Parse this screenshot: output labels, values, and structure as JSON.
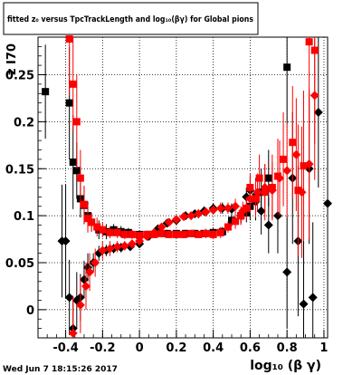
{
  "chart_data": {
    "type": "scatter",
    "title": "fitted  z₀ versus TpcTrackLength and log₁₀(βγ) for Global pions",
    "xlabel": "log₁₀ (β γ)",
    "ylabel": "z I70",
    "xlim": [
      -0.55,
      1.02
    ],
    "ylim": [
      -0.03,
      0.29
    ],
    "xticks": [
      -0.4,
      -0.2,
      0,
      0.2,
      0.4,
      0.6,
      0.8,
      1
    ],
    "xtick_labels": [
      "-0.4",
      "-0.2",
      "0",
      "0.2",
      "0.4",
      "0.6",
      "0.8",
      "1"
    ],
    "yticks": [
      0,
      0.05,
      0.1,
      0.15,
      0.2,
      0.25
    ],
    "ytick_labels": [
      "0",
      "0.05",
      "0.1",
      "0.15",
      "0.2",
      "0.25"
    ],
    "grid": true,
    "footer_text": "Wed Jun  7 18:15:26 2017",
    "series": [
      {
        "color": "#000000",
        "marker": "square",
        "points": [
          {
            "x": -0.51,
            "y": 0.232,
            "err": 0.05
          },
          {
            "x": -0.38,
            "y": 0.22,
            "err": 0.06
          },
          {
            "x": -0.36,
            "y": 0.157,
            "err": 0.05
          },
          {
            "x": -0.34,
            "y": 0.148,
            "err": 0.03
          },
          {
            "x": -0.32,
            "y": 0.118,
            "err": 0.02
          },
          {
            "x": -0.3,
            "y": 0.111,
            "err": 0.02
          },
          {
            "x": -0.28,
            "y": 0.1,
            "err": 0.015
          },
          {
            "x": -0.26,
            "y": 0.093,
            "err": 0.01
          },
          {
            "x": -0.22,
            "y": 0.085,
            "err": 0.01
          },
          {
            "x": -0.18,
            "y": 0.083,
            "err": 0.008
          },
          {
            "x": -0.14,
            "y": 0.085,
            "err": 0.006
          },
          {
            "x": -0.1,
            "y": 0.083,
            "err": 0.006
          },
          {
            "x": -0.06,
            "y": 0.082,
            "err": 0.005
          },
          {
            "x": 0.0,
            "y": 0.08,
            "err": 0.004
          },
          {
            "x": 0.05,
            "y": 0.08,
            "err": 0.004
          },
          {
            "x": 0.1,
            "y": 0.082,
            "err": 0.004
          },
          {
            "x": 0.15,
            "y": 0.081,
            "err": 0.004
          },
          {
            "x": 0.2,
            "y": 0.081,
            "err": 0.004
          },
          {
            "x": 0.25,
            "y": 0.081,
            "err": 0.004
          },
          {
            "x": 0.3,
            "y": 0.081,
            "err": 0.004
          },
          {
            "x": 0.35,
            "y": 0.081,
            "err": 0.004
          },
          {
            "x": 0.4,
            "y": 0.082,
            "err": 0.005
          },
          {
            "x": 0.45,
            "y": 0.083,
            "err": 0.005
          },
          {
            "x": 0.5,
            "y": 0.095,
            "err": 0.006
          },
          {
            "x": 0.55,
            "y": 0.1,
            "err": 0.008
          },
          {
            "x": 0.58,
            "y": 0.103,
            "err": 0.01
          },
          {
            "x": 0.6,
            "y": 0.11,
            "err": 0.015
          },
          {
            "x": 0.63,
            "y": 0.12,
            "err": 0.02
          },
          {
            "x": 0.66,
            "y": 0.125,
            "err": 0.025
          },
          {
            "x": 0.7,
            "y": 0.14,
            "err": 0.03
          },
          {
            "x": 0.8,
            "y": 0.258,
            "err": 0.06
          }
        ]
      },
      {
        "color": "#000000",
        "marker": "diamond",
        "points": [
          {
            "x": -0.42,
            "y": 0.073,
            "err": 0.06
          },
          {
            "x": -0.4,
            "y": 0.073,
            "err": 0.06
          },
          {
            "x": -0.38,
            "y": 0.013,
            "err": 0.04
          },
          {
            "x": -0.36,
            "y": -0.02,
            "err": 0.03
          },
          {
            "x": -0.34,
            "y": 0.01,
            "err": 0.03
          },
          {
            "x": -0.32,
            "y": 0.013,
            "err": 0.025
          },
          {
            "x": -0.3,
            "y": 0.032,
            "err": 0.02
          },
          {
            "x": -0.28,
            "y": 0.045,
            "err": 0.015
          },
          {
            "x": -0.25,
            "y": 0.05,
            "err": 0.01
          },
          {
            "x": -0.22,
            "y": 0.06,
            "err": 0.008
          },
          {
            "x": -0.18,
            "y": 0.063,
            "err": 0.006
          },
          {
            "x": -0.14,
            "y": 0.065,
            "err": 0.005
          },
          {
            "x": -0.1,
            "y": 0.066,
            "err": 0.005
          },
          {
            "x": -0.05,
            "y": 0.067,
            "err": 0.004
          },
          {
            "x": 0.0,
            "y": 0.07,
            "err": 0.004
          },
          {
            "x": 0.05,
            "y": 0.078,
            "err": 0.004
          },
          {
            "x": 0.1,
            "y": 0.086,
            "err": 0.004
          },
          {
            "x": 0.15,
            "y": 0.092,
            "err": 0.004
          },
          {
            "x": 0.2,
            "y": 0.095,
            "err": 0.004
          },
          {
            "x": 0.25,
            "y": 0.1,
            "err": 0.004
          },
          {
            "x": 0.3,
            "y": 0.102,
            "err": 0.004
          },
          {
            "x": 0.35,
            "y": 0.105,
            "err": 0.005
          },
          {
            "x": 0.4,
            "y": 0.108,
            "err": 0.005
          },
          {
            "x": 0.45,
            "y": 0.108,
            "err": 0.006
          },
          {
            "x": 0.5,
            "y": 0.107,
            "err": 0.006
          },
          {
            "x": 0.55,
            "y": 0.1,
            "err": 0.008
          },
          {
            "x": 0.58,
            "y": 0.12,
            "err": 0.01
          },
          {
            "x": 0.6,
            "y": 0.127,
            "err": 0.015
          },
          {
            "x": 0.63,
            "y": 0.115,
            "err": 0.02
          },
          {
            "x": 0.66,
            "y": 0.105,
            "err": 0.025
          },
          {
            "x": 0.7,
            "y": 0.09,
            "err": 0.03
          },
          {
            "x": 0.75,
            "y": 0.1,
            "err": 0.04
          },
          {
            "x": 0.8,
            "y": 0.04,
            "err": 0.06
          },
          {
            "x": 0.83,
            "y": 0.14,
            "err": 0.07
          },
          {
            "x": 0.86,
            "y": 0.073,
            "err": 0.08
          },
          {
            "x": 0.89,
            "y": 0.006,
            "err": 0.08
          },
          {
            "x": 0.92,
            "y": 0.15,
            "err": 0.08
          },
          {
            "x": 0.94,
            "y": 0.013,
            "err": 0.08
          },
          {
            "x": 0.97,
            "y": 0.21,
            "err": 0.08
          },
          {
            "x": 1.02,
            "y": 0.113,
            "err": 0.08
          }
        ]
      },
      {
        "color": "#ff0000",
        "marker": "square",
        "points": [
          {
            "x": -0.38,
            "y": 0.288,
            "err": 0.06
          },
          {
            "x": -0.36,
            "y": 0.24,
            "err": 0.05
          },
          {
            "x": -0.34,
            "y": 0.2,
            "err": 0.05
          },
          {
            "x": -0.32,
            "y": 0.14,
            "err": 0.03
          },
          {
            "x": -0.3,
            "y": 0.112,
            "err": 0.02
          },
          {
            "x": -0.28,
            "y": 0.097,
            "err": 0.015
          },
          {
            "x": -0.26,
            "y": 0.093,
            "err": 0.01
          },
          {
            "x": -0.23,
            "y": 0.088,
            "err": 0.01
          },
          {
            "x": -0.2,
            "y": 0.085,
            "err": 0.008
          },
          {
            "x": -0.16,
            "y": 0.082,
            "err": 0.006
          },
          {
            "x": -0.12,
            "y": 0.082,
            "err": 0.006
          },
          {
            "x": -0.08,
            "y": 0.08,
            "err": 0.005
          },
          {
            "x": -0.04,
            "y": 0.08,
            "err": 0.005
          },
          {
            "x": 0.0,
            "y": 0.079,
            "err": 0.004
          },
          {
            "x": 0.04,
            "y": 0.08,
            "err": 0.004
          },
          {
            "x": 0.08,
            "y": 0.08,
            "err": 0.004
          },
          {
            "x": 0.12,
            "y": 0.081,
            "err": 0.004
          },
          {
            "x": 0.16,
            "y": 0.08,
            "err": 0.004
          },
          {
            "x": 0.2,
            "y": 0.08,
            "err": 0.004
          },
          {
            "x": 0.24,
            "y": 0.08,
            "err": 0.004
          },
          {
            "x": 0.28,
            "y": 0.081,
            "err": 0.004
          },
          {
            "x": 0.32,
            "y": 0.08,
            "err": 0.004
          },
          {
            "x": 0.36,
            "y": 0.081,
            "err": 0.005
          },
          {
            "x": 0.4,
            "y": 0.08,
            "err": 0.005
          },
          {
            "x": 0.44,
            "y": 0.082,
            "err": 0.006
          },
          {
            "x": 0.48,
            "y": 0.088,
            "err": 0.006
          },
          {
            "x": 0.52,
            "y": 0.094,
            "err": 0.008
          },
          {
            "x": 0.55,
            "y": 0.1,
            "err": 0.01
          },
          {
            "x": 0.58,
            "y": 0.108,
            "err": 0.012
          },
          {
            "x": 0.6,
            "y": 0.13,
            "err": 0.015
          },
          {
            "x": 0.63,
            "y": 0.118,
            "err": 0.02
          },
          {
            "x": 0.65,
            "y": 0.14,
            "err": 0.025
          },
          {
            "x": 0.68,
            "y": 0.125,
            "err": 0.03
          },
          {
            "x": 0.72,
            "y": 0.13,
            "err": 0.035
          },
          {
            "x": 0.75,
            "y": 0.142,
            "err": 0.04
          },
          {
            "x": 0.78,
            "y": 0.16,
            "err": 0.05
          },
          {
            "x": 0.83,
            "y": 0.178,
            "err": 0.06
          },
          {
            "x": 0.86,
            "y": 0.127,
            "err": 0.07
          },
          {
            "x": 0.89,
            "y": 0.153,
            "err": 0.08
          },
          {
            "x": 0.92,
            "y": 0.285,
            "err": 0.1
          },
          {
            "x": 0.95,
            "y": 0.276,
            "err": 0.1
          }
        ]
      },
      {
        "color": "#ff0000",
        "marker": "diamond",
        "points": [
          {
            "x": -0.36,
            "y": -0.025,
            "err": 0.04
          },
          {
            "x": -0.32,
            "y": 0.005,
            "err": 0.03
          },
          {
            "x": -0.29,
            "y": 0.025,
            "err": 0.025
          },
          {
            "x": -0.27,
            "y": 0.04,
            "err": 0.02
          },
          {
            "x": -0.24,
            "y": 0.05,
            "err": 0.015
          },
          {
            "x": -0.2,
            "y": 0.063,
            "err": 0.01
          },
          {
            "x": -0.16,
            "y": 0.065,
            "err": 0.008
          },
          {
            "x": -0.12,
            "y": 0.067,
            "err": 0.006
          },
          {
            "x": -0.08,
            "y": 0.068,
            "err": 0.005
          },
          {
            "x": -0.04,
            "y": 0.07,
            "err": 0.004
          },
          {
            "x": 0.0,
            "y": 0.073,
            "err": 0.004
          },
          {
            "x": 0.04,
            "y": 0.078,
            "err": 0.004
          },
          {
            "x": 0.08,
            "y": 0.082,
            "err": 0.004
          },
          {
            "x": 0.12,
            "y": 0.088,
            "err": 0.004
          },
          {
            "x": 0.16,
            "y": 0.093,
            "err": 0.004
          },
          {
            "x": 0.2,
            "y": 0.096,
            "err": 0.004
          },
          {
            "x": 0.24,
            "y": 0.099,
            "err": 0.004
          },
          {
            "x": 0.28,
            "y": 0.1,
            "err": 0.004
          },
          {
            "x": 0.32,
            "y": 0.102,
            "err": 0.005
          },
          {
            "x": 0.36,
            "y": 0.104,
            "err": 0.005
          },
          {
            "x": 0.4,
            "y": 0.106,
            "err": 0.005
          },
          {
            "x": 0.44,
            "y": 0.108,
            "err": 0.006
          },
          {
            "x": 0.48,
            "y": 0.108,
            "err": 0.006
          },
          {
            "x": 0.52,
            "y": 0.11,
            "err": 0.008
          },
          {
            "x": 0.56,
            "y": 0.105,
            "err": 0.01
          },
          {
            "x": 0.6,
            "y": 0.118,
            "err": 0.015
          },
          {
            "x": 0.64,
            "y": 0.125,
            "err": 0.02
          },
          {
            "x": 0.68,
            "y": 0.13,
            "err": 0.025
          },
          {
            "x": 0.72,
            "y": 0.127,
            "err": 0.03
          },
          {
            "x": 0.76,
            "y": 0.14,
            "err": 0.04
          },
          {
            "x": 0.8,
            "y": 0.148,
            "err": 0.05
          },
          {
            "x": 0.85,
            "y": 0.165,
            "err": 0.06
          },
          {
            "x": 0.88,
            "y": 0.125,
            "err": 0.07
          },
          {
            "x": 0.92,
            "y": 0.155,
            "err": 0.08
          },
          {
            "x": 0.95,
            "y": 0.228,
            "err": 0.09
          }
        ]
      }
    ]
  }
}
